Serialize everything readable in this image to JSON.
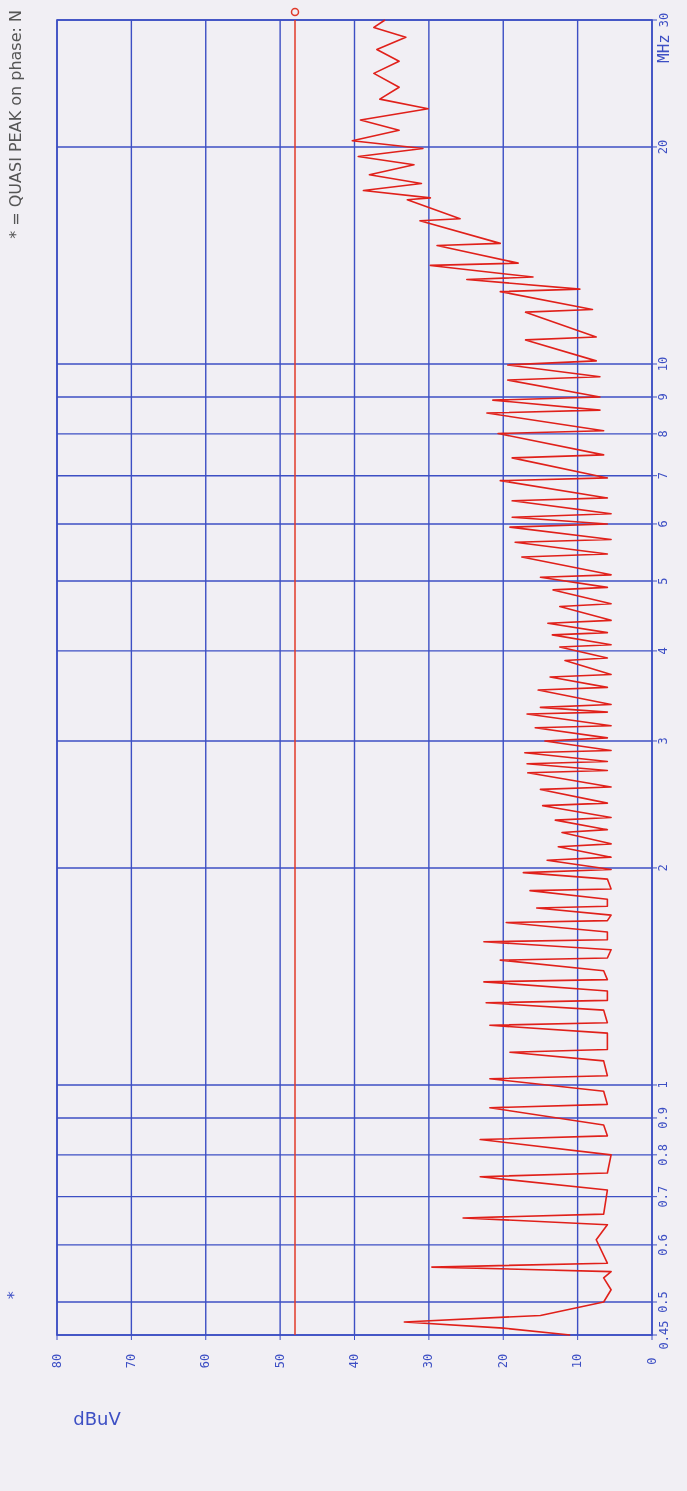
{
  "chart_data": {
    "type": "line",
    "title": "* = QUASI PEAK    on phase: N",
    "xlabel": "dBuV",
    "ylabel": "MHz",
    "annotations": [
      "*"
    ],
    "log": "y",
    "grid": true,
    "marker": "none",
    "line_style": "solid",
    "xlim": [
      80,
      0
    ],
    "xticks": [
      80,
      70,
      60,
      50,
      40,
      30,
      20,
      10,
      0
    ],
    "ylim": [
      0.45,
      30
    ],
    "yticks": [
      0.45,
      0.5,
      0.6,
      0.7,
      0.8,
      0.9,
      1,
      2,
      3,
      4,
      5,
      6,
      7,
      8,
      9,
      10,
      20,
      30
    ],
    "ref_lines": [
      {
        "axis": "x",
        "value": 48,
        "color": "#e03a2a"
      }
    ],
    "x": [
      11,
      20,
      33.3,
      15,
      6.5,
      5.5,
      6.5,
      5.5,
      29.6,
      6,
      7.5,
      6,
      25.4,
      6.5,
      6,
      23.1,
      6,
      5.5,
      23.1,
      6,
      6.5,
      21.8,
      6,
      6.5,
      21.8,
      6,
      6.5,
      19.1,
      6,
      6,
      21.8,
      6,
      6.5,
      22.3,
      6,
      6,
      22.6,
      6,
      6.5,
      20.4,
      6,
      5.5,
      22.6,
      6,
      6,
      19.6,
      6,
      5.5,
      15.5,
      6,
      6,
      16.4,
      5.5,
      6,
      17.3,
      5.5,
      14.1,
      5.5,
      12.6,
      5.5,
      12.1,
      6,
      13,
      5.5,
      14.7,
      6,
      15,
      5.5,
      16.7,
      6,
      16.8,
      6,
      17.1,
      5.5,
      14.4,
      6,
      15.7,
      5.5,
      16.8,
      6,
      15,
      5.5,
      15.3,
      6,
      13.7,
      5.5,
      11.7,
      6,
      12.4,
      5.5,
      13.4,
      6,
      14,
      5.5,
      12.4,
      5.5,
      13.3,
      6,
      15,
      5.5,
      17.5,
      6,
      18.4,
      5.5,
      19.1,
      6,
      18.8,
      5.5,
      18.8,
      6,
      20.4,
      6,
      18.8,
      6.5,
      20.7,
      6.5,
      22.2,
      7,
      21.4,
      7,
      19.4,
      7,
      19.4,
      7.5,
      17,
      7.5,
      17,
      8,
      20.4,
      9.7,
      24.9,
      16,
      29.8,
      18,
      28.9,
      20.4,
      31.2,
      25.8,
      32.9,
      29.8,
      38.8,
      31,
      38,
      32,
      39.5,
      30.8,
      40.3,
      34,
      39.2,
      30.1,
      36.6,
      34,
      37.4,
      34,
      37,
      33.1,
      37.4,
      35.9
    ],
    "series": [
      {
        "color": "#e0201a",
        "values": [
          0.45,
          0.46,
          0.469,
          0.479,
          0.5,
          0.52,
          0.54,
          0.551,
          0.559,
          0.566,
          0.61,
          0.64,
          0.654,
          0.662,
          0.715,
          0.746,
          0.755,
          0.8,
          0.84,
          0.85,
          0.88,
          0.93,
          0.94,
          0.98,
          1.02,
          1.03,
          1.08,
          1.11,
          1.12,
          1.18,
          1.21,
          1.22,
          1.27,
          1.3,
          1.31,
          1.35,
          1.39,
          1.4,
          1.44,
          1.49,
          1.5,
          1.54,
          1.58,
          1.59,
          1.63,
          1.68,
          1.69,
          1.72,
          1.76,
          1.77,
          1.81,
          1.86,
          1.87,
          1.93,
          1.97,
          1.99,
          2.05,
          2.07,
          2.14,
          2.16,
          2.24,
          2.26,
          2.33,
          2.35,
          2.44,
          2.46,
          2.57,
          2.59,
          2.71,
          2.73,
          2.79,
          2.81,
          2.89,
          2.91,
          3,
          3.03,
          3.13,
          3.15,
          3.27,
          3.29,
          3.34,
          3.37,
          3.53,
          3.56,
          3.68,
          3.71,
          3.88,
          3.91,
          4.05,
          4.08,
          4.21,
          4.24,
          4.37,
          4.41,
          4.61,
          4.65,
          4.86,
          4.9,
          5.06,
          5.1,
          5.4,
          5.45,
          5.66,
          5.71,
          5.94,
          6,
          6.13,
          6.2,
          6.46,
          6.52,
          6.89,
          6.95,
          7.41,
          7.48,
          8.01,
          8.08,
          8.55,
          8.63,
          8.91,
          9,
          9.5,
          9.6,
          9.97,
          10.1,
          10.8,
          10.9,
          11.8,
          11.9,
          12.6,
          12.7,
          13.1,
          13.2,
          13.7,
          13.8,
          14.6,
          14.7,
          15.8,
          15.9,
          16.9,
          17,
          17.4,
          17.8,
          18.3,
          18.9,
          19.4,
          19.9,
          20.4,
          21.1,
          21.8,
          22.6,
          23.3,
          24.2,
          25.3,
          26.3,
          27.3,
          28.4,
          29.3,
          30
        ]
      }
    ]
  }
}
